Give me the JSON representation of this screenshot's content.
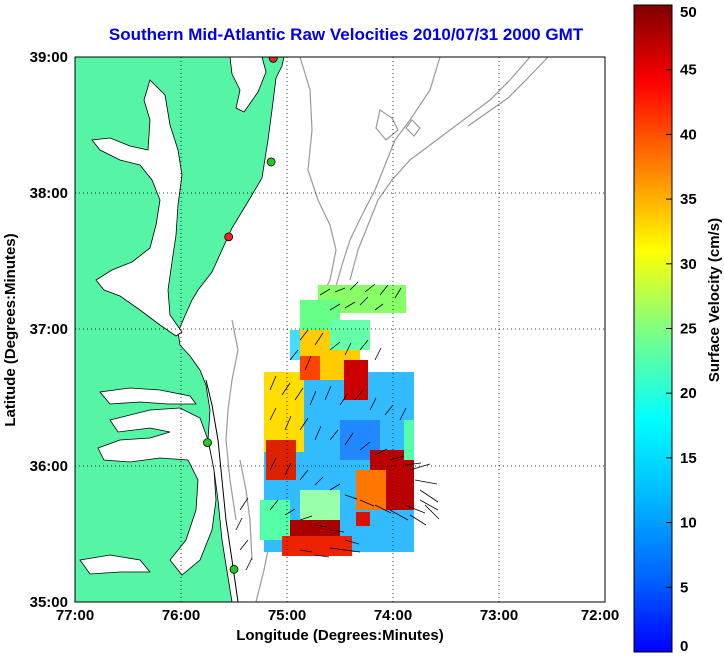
{
  "title": "Southern Mid-Atlantic Raw Velocities 2010/07/31 2000 GMT",
  "xlabel": "Longitude (Degrees:Minutes)",
  "ylabel": "Latitude (Degrees:Minutes)",
  "colorbar": {
    "label": "Surface Velocity (cm/s)",
    "ticks": [
      "0",
      "5",
      "10",
      "15",
      "20",
      "25",
      "30",
      "35",
      "40",
      "45",
      "50"
    ],
    "min": 0,
    "max": 50
  },
  "axes": {
    "x_ticks": [
      "77:00",
      "76:00",
      "75:00",
      "74:00",
      "73:00",
      "72:00"
    ],
    "y_ticks": [
      "39:00",
      "38:00",
      "37:00",
      "36:00",
      "35:00"
    ],
    "lon_range": [
      -77,
      -72
    ],
    "lat_range": [
      35,
      39
    ]
  },
  "colors": {
    "land": "#55f5a5",
    "ocean": "#ffffff",
    "coast": "#000000",
    "bathymetry": "#999999",
    "title": "#0000ee",
    "station_green": "#22cc22",
    "station_red": "#ee2222"
  },
  "stations": [
    {
      "color": "red",
      "lon": -75.13,
      "lat": 38.99
    },
    {
      "color": "green",
      "lon": -75.15,
      "lat": 38.23
    },
    {
      "color": "red",
      "lon": -75.55,
      "lat": 37.68
    },
    {
      "color": "green",
      "lon": -75.75,
      "lat": 36.17
    },
    {
      "color": "green",
      "lon": -75.5,
      "lat": 35.24
    }
  ]
}
